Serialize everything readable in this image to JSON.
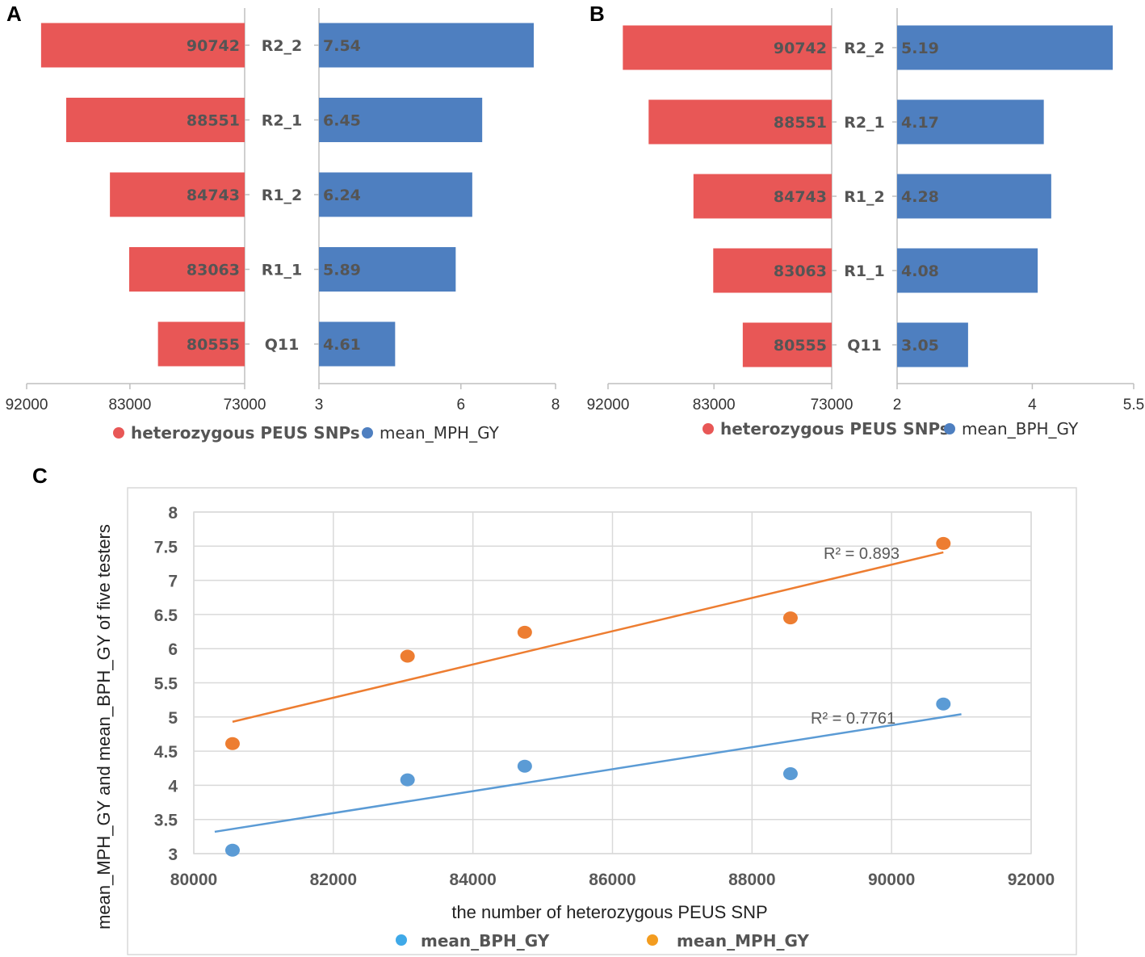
{
  "colors": {
    "red": "#E85756",
    "blue": "#4E7FC0",
    "orange": "#ED7D31",
    "lightblue": "#5B9BD5"
  },
  "panels": {
    "A": {
      "letter": "A"
    },
    "B": {
      "letter": "B"
    },
    "C": {
      "letter": "C"
    }
  },
  "chart_data": [
    {
      "panel": "A",
      "type": "bar",
      "orientation": "horizontal-butterfly",
      "categories": [
        "R2_2",
        "R2_1",
        "R1_2",
        "R1_1",
        "Q11"
      ],
      "series": [
        {
          "name": "heterozygous PEUS SNPs",
          "values": [
            90742,
            88551,
            84743,
            83063,
            80555
          ],
          "labels": [
            "90742",
            "88551",
            "84743",
            "83063",
            "80555"
          ]
        },
        {
          "name": "mean_MPH_GY",
          "values": [
            7.54,
            6.45,
            6.24,
            5.89,
            4.61
          ],
          "labels": [
            "7.54",
            "6.45",
            "6.24",
            "5.89",
            "4.61"
          ]
        }
      ],
      "left_axis": {
        "range": [
          92000,
          73000
        ],
        "ticks": [
          "92000",
          "83000",
          "73000"
        ]
      },
      "right_axis": {
        "range": [
          3,
          8
        ],
        "ticks": [
          "3",
          "6",
          "8"
        ]
      },
      "legend": [
        "heterozygous PEUS SNPs",
        "mean_MPH_GY"
      ]
    },
    {
      "panel": "B",
      "type": "bar",
      "orientation": "horizontal-butterfly",
      "categories": [
        "R2_2",
        "R2_1",
        "R1_2",
        "R1_1",
        "Q11"
      ],
      "series": [
        {
          "name": "heterozygous PEUS SNPs",
          "values": [
            90742,
            88551,
            84743,
            83063,
            80555
          ],
          "labels": [
            "90742",
            "88551",
            "84743",
            "83063",
            "80555"
          ]
        },
        {
          "name": "mean_BPH_GY",
          "values": [
            5.19,
            4.17,
            4.28,
            4.08,
            3.05
          ],
          "labels": [
            "5.19",
            "4.17",
            "4.28",
            "4.08",
            "3.05"
          ]
        }
      ],
      "left_axis": {
        "range": [
          92000,
          73000
        ],
        "ticks": [
          "92000",
          "83000",
          "73000"
        ]
      },
      "right_axis": {
        "range": [
          2,
          5.5
        ],
        "ticks": [
          "2",
          "4",
          "5.5"
        ]
      },
      "legend": [
        "heterozygous PEUS SNPs",
        "mean_BPH_GY"
      ]
    },
    {
      "panel": "C",
      "type": "scatter",
      "xlabel": "the number of heterozygous PEUS SNP",
      "ylabel": "mean_MPH_GY and mean_BPH_GY of  five testers",
      "xlim": [
        80000,
        92000
      ],
      "ylim": [
        3,
        8
      ],
      "xticks": [
        "80000",
        "82000",
        "84000",
        "86000",
        "88000",
        "90000",
        "92000"
      ],
      "yticks": [
        "3",
        "3.5",
        "4",
        "4.5",
        "5",
        "5.5",
        "6",
        "6.5",
        "7",
        "7.5",
        "8"
      ],
      "grid": true,
      "series": [
        {
          "name": "mean_BPH_GY",
          "x": [
            90742,
            88551,
            84743,
            83063,
            80555
          ],
          "y": [
            5.19,
            4.17,
            4.28,
            4.08,
            3.05
          ],
          "trendline": {
            "x": [
              80300,
              91000
            ],
            "y": [
              3.32,
              5.04
            ]
          },
          "r2_label": "R² = 0.7761"
        },
        {
          "name": "mean_MPH_GY",
          "x": [
            90742,
            88551,
            84743,
            83063,
            80555
          ],
          "y": [
            7.54,
            6.45,
            6.24,
            5.89,
            4.61
          ],
          "trendline": {
            "x": [
              80555,
              90742
            ],
            "y": [
              4.93,
              7.41
            ]
          },
          "r2_label": "R² = 0.893"
        }
      ],
      "legend": [
        "mean_BPH_GY",
        "mean_MPH_GY"
      ]
    }
  ]
}
